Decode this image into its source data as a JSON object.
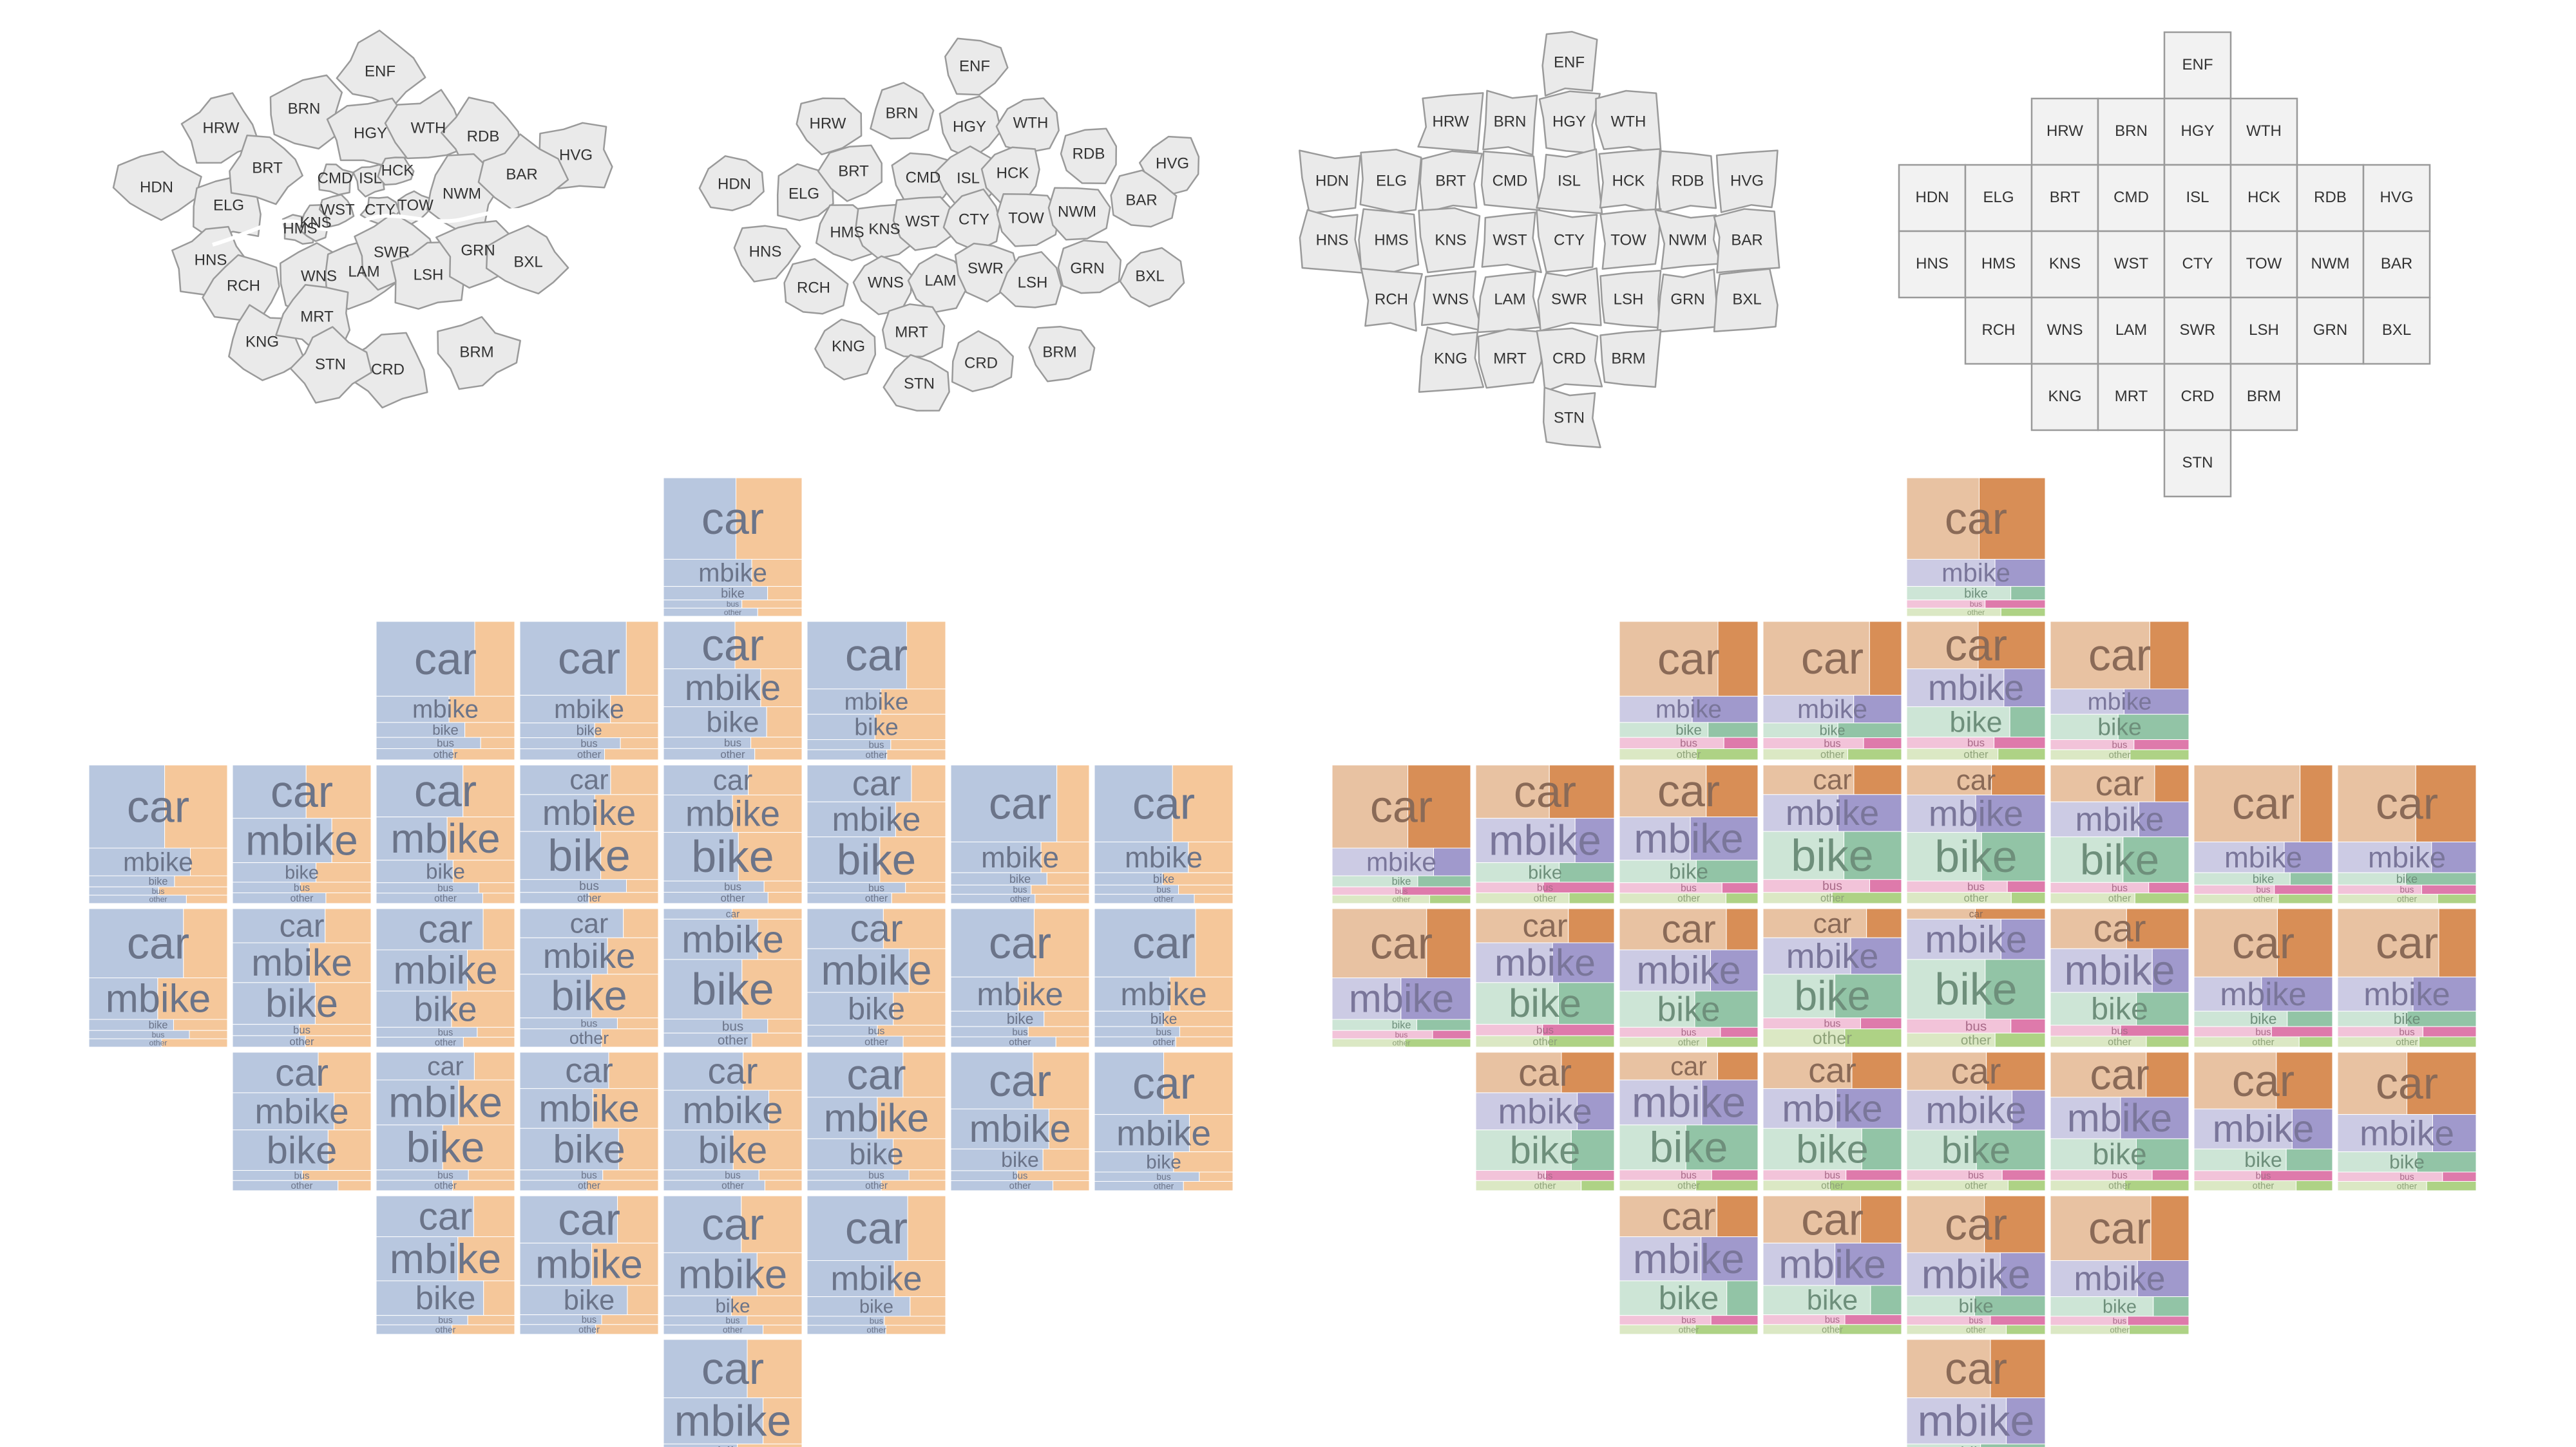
{
  "boroughs": [
    "ENF",
    "HRW",
    "BRN",
    "HGY",
    "WTH",
    "HDN",
    "ELG",
    "BRT",
    "CMD",
    "ISL",
    "HCK",
    "RDB",
    "HVG",
    "HNS",
    "HMS",
    "KNS",
    "WST",
    "CTY",
    "TOW",
    "NWM",
    "BAR",
    "RCH",
    "WNS",
    "LAM",
    "SWR",
    "LSH",
    "GRN",
    "BXL",
    "KNG",
    "MRT",
    "CRD",
    "BRM",
    "STN"
  ],
  "mode_labels": [
    "car",
    "mbike",
    "bike",
    "bus",
    "other"
  ],
  "colors": {
    "map_fill": "#eaeaea",
    "map_stroke": "#9a9a9a",
    "grid_fill": "#f2f2f2",
    "left_main": "#b8c7df",
    "left_accent": "#f5c79a",
    "right_car": "#e8c2a2",
    "right_car_accent": "#d88e56",
    "right_mbike": "#cccbe4",
    "right_mbike_accent": "#a099cc",
    "right_bike": "#cde5d6",
    "right_bike_accent": "#92c4a6",
    "right_bus": "#f2c3d9",
    "right_bus_accent": "#de7aab",
    "right_other": "#dbe8c4",
    "right_other_accent": "#aed285"
  },
  "tiles": [
    {
      "code": "ENF",
      "s": [
        6,
        2,
        1,
        0.6,
        0.6
      ]
    },
    {
      "code": "HRW",
      "s": [
        4,
        1.4,
        0.8,
        0.6,
        0.6
      ]
    },
    {
      "code": "BRN",
      "s": [
        4,
        1.5,
        0.8,
        0.6,
        0.6
      ]
    },
    {
      "code": "HGY",
      "s": [
        2.5,
        2,
        1.6,
        0.6,
        0.6
      ]
    },
    {
      "code": "WTH",
      "s": [
        4,
        1.5,
        1.5,
        0.6,
        0.6
      ]
    },
    {
      "code": "HDN",
      "s": [
        6,
        2,
        0.8,
        0.6,
        0.6
      ]
    },
    {
      "code": "ELG",
      "s": [
        3,
        2.5,
        1.1,
        0.6,
        0.6
      ]
    },
    {
      "code": "BRT",
      "s": [
        3,
        2.5,
        1.3,
        0.6,
        0.6
      ]
    },
    {
      "code": "CMD",
      "s": [
        1.6,
        2,
        2.6,
        0.7,
        0.6
      ]
    },
    {
      "code": "ISL",
      "s": [
        1.6,
        2,
        2.6,
        0.6,
        0.6
      ]
    },
    {
      "code": "HCK",
      "s": [
        2.1,
        2,
        2.6,
        0.6,
        0.6
      ]
    },
    {
      "code": "RDB",
      "s": [
        5,
        2,
        0.8,
        0.6,
        0.6
      ]
    },
    {
      "code": "HVG",
      "s": [
        5,
        2,
        0.8,
        0.6,
        0.6
      ]
    },
    {
      "code": "HNS",
      "s": [
        5,
        3,
        0.8,
        0.6,
        0.6
      ]
    },
    {
      "code": "HMS",
      "s": [
        1.8,
        2.1,
        2.2,
        0.6,
        0.6
      ]
    },
    {
      "code": "KNS",
      "s": [
        2.5,
        2.5,
        2.2,
        0.6,
        0.6
      ]
    },
    {
      "code": "WST",
      "s": [
        1.6,
        2,
        2.4,
        0.6,
        1
      ]
    },
    {
      "code": "CTY",
      "s": [
        0.6,
        2.3,
        3.4,
        0.8,
        0.8
      ]
    },
    {
      "code": "TOW",
      "s": [
        2.2,
        2.4,
        1.8,
        0.6,
        0.6
      ]
    },
    {
      "code": "NWM",
      "s": [
        4,
        2,
        0.9,
        0.6,
        0.6
      ]
    },
    {
      "code": "BAR",
      "s": [
        4,
        2,
        0.9,
        0.6,
        0.6
      ]
    },
    {
      "code": "RCH",
      "s": [
        2.4,
        2.2,
        2.4,
        0.6,
        0.6
      ]
    },
    {
      "code": "WNS",
      "s": [
        1.6,
        2.6,
        2.6,
        0.6,
        0.6
      ]
    },
    {
      "code": "LAM",
      "s": [
        2.1,
        2.3,
        2.4,
        0.6,
        0.6
      ]
    },
    {
      "code": "SWR",
      "s": [
        2.2,
        2.3,
        2.3,
        0.6,
        0.6
      ]
    },
    {
      "code": "LSH",
      "s": [
        2.6,
        2.4,
        1.8,
        0.6,
        0.6
      ]
    },
    {
      "code": "GRN",
      "s": [
        3.4,
        2.4,
        1.3,
        0.6,
        0.6
      ]
    },
    {
      "code": "BXL",
      "s": [
        4,
        2.4,
        1.3,
        0.6,
        0.6
      ]
    },
    {
      "code": "KNG",
      "s": [
        2.6,
        2.8,
        2.2,
        0.6,
        0.6
      ]
    },
    {
      "code": "MRT",
      "s": [
        2.9,
        2.6,
        1.8,
        0.6,
        0.6
      ]
    },
    {
      "code": "CRD",
      "s": [
        3.7,
        2.8,
        1.3,
        0.6,
        0.6
      ]
    },
    {
      "code": "BRM",
      "s": [
        4.3,
        2.4,
        1.3,
        0.6,
        0.6
      ]
    },
    {
      "code": "STN",
      "s": [
        4.3,
        3.4,
        1.3,
        0.6,
        0.6
      ]
    }
  ]
}
